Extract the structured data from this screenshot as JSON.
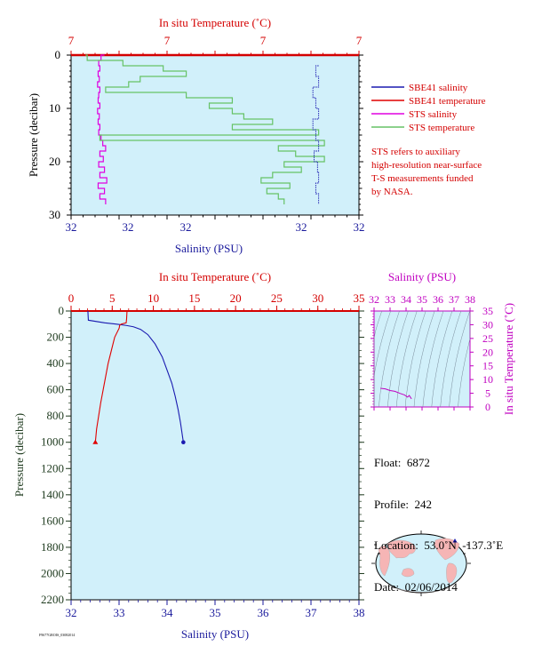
{
  "top_chart": {
    "x2_title": "In situ Temperature (˚C)",
    "x2_tick_labels": [
      "7",
      "7",
      "7",
      "7"
    ],
    "x1_title": "Salinity (PSU)",
    "x1_tick_labels": [
      "32",
      "32",
      "32",
      "32",
      "32"
    ],
    "y_title": "Pressure (decibar)",
    "y_tick_labels": [
      "0",
      "10",
      "20",
      "30"
    ],
    "legend": [
      {
        "label": "SBE41 salinity",
        "color": "#1a1ab0"
      },
      {
        "label": "SBE41 temperature",
        "color": "#e00000"
      },
      {
        "label": "STS salinity",
        "color": "#e000e0"
      },
      {
        "label": "STS temperature",
        "color": "#66c266"
      }
    ],
    "note_lines": [
      "STS refers to auxiliary",
      "high-resolution near-surface",
      "T-S measurements funded",
      "by NASA."
    ]
  },
  "main_chart": {
    "x2_title": "In situ Temperature (˚C)",
    "x1_title": "Salinity (PSU)",
    "y_title": "Pressure (decibar)"
  },
  "ts_chart": {
    "x_title": "Salinity (PSU)",
    "y_title": "In situ Temperature (˚C)"
  },
  "info": {
    "float": "Float:  6872",
    "profile": "Profile:  242",
    "location": "Location:  53.0˚N  -137.3˚E",
    "date": "Date:  02/06/2014"
  },
  "footer_text": "F9677GROIS_03082014",
  "colors": {
    "plot_bg": "#d1f0fa",
    "salinity": "#1a1ab0",
    "temperature": "#e00000",
    "sts_salinity": "#e000e0",
    "sts_temperature": "#66c266",
    "axis_red": "#d40000",
    "axis_blue": "#1a1a9c",
    "axis_magenta": "#c000c0"
  },
  "chart_data": [
    {
      "type": "line",
      "title": "",
      "xlabel": "Salinity (PSU)",
      "x2label": "In situ Temperature (˚C)",
      "ylabel": "Pressure (decibar)",
      "ylim": [
        30,
        0
      ],
      "series": [
        {
          "name": "STS salinity",
          "pressure": [
            0,
            1,
            2,
            3,
            4,
            5,
            6,
            7,
            8,
            9,
            10,
            11,
            12,
            13,
            14,
            15,
            16,
            17,
            18,
            19,
            20,
            21,
            22,
            23,
            24,
            25,
            26,
            27,
            28
          ],
          "values_offset": [
            0.58,
            0.52,
            0.48,
            0.5,
            0.47,
            0.49,
            0.46,
            0.5,
            0.48,
            0.47,
            0.5,
            0.46,
            0.49,
            0.47,
            0.5,
            0.48,
            0.52,
            0.55,
            0.6,
            0.5,
            0.56,
            0.48,
            0.58,
            0.5,
            0.62,
            0.47,
            0.58,
            0.5,
            0.6
          ]
        },
        {
          "name": "STS temperature",
          "pressure": [
            0,
            1,
            2,
            3,
            4,
            5,
            6,
            7,
            8,
            9,
            10,
            11,
            12,
            13,
            14,
            15,
            16,
            17,
            18,
            19,
            20,
            21,
            22,
            23,
            24,
            25,
            26,
            27,
            28
          ],
          "values_offset": [
            0.25,
            0.28,
            0.9,
            1.6,
            2.0,
            1.2,
            1.0,
            0.6,
            2.0,
            2.8,
            2.4,
            2.8,
            3.0,
            3.5,
            2.8,
            4.3,
            0.5,
            4.4,
            3.6,
            3.9,
            4.4,
            3.7,
            4.0,
            3.5,
            3.3,
            3.8,
            3.4,
            3.6,
            3.7
          ]
        },
        {
          "name": "SBE41 salinity",
          "pressure": [
            2,
            4,
            6,
            8,
            10,
            12,
            14,
            16,
            18,
            20,
            22,
            24,
            26,
            28
          ],
          "values_offset": [
            4.3,
            4.25,
            4.3,
            4.2,
            4.25,
            4.3,
            4.2,
            4.25,
            4.3,
            4.22,
            4.28,
            4.3,
            4.25,
            4.3
          ]
        }
      ]
    },
    {
      "type": "line",
      "title": "",
      "xlabel": "Salinity (PSU)",
      "x2label": "In situ Temperature (˚C)",
      "ylabel": "Pressure (decibar)",
      "xlim": [
        32,
        38
      ],
      "x2lim": [
        0,
        35
      ],
      "ylim": [
        2200,
        0
      ],
      "x_ticks": [
        32,
        33,
        34,
        35,
        36,
        37,
        38
      ],
      "x2_ticks": [
        0,
        5,
        10,
        15,
        20,
        25,
        30,
        35
      ],
      "y_ticks": [
        0,
        200,
        400,
        600,
        800,
        1000,
        1200,
        1400,
        1600,
        1800,
        2000,
        2200
      ],
      "series": [
        {
          "name": "SBE41 salinity",
          "axis": "salinity",
          "pressure": [
            0,
            70,
            90,
            100,
            110,
            120,
            140,
            180,
            250,
            350,
            450,
            550,
            650,
            750,
            850,
            950,
            1000
          ],
          "values": [
            32.35,
            32.36,
            32.7,
            32.95,
            33.15,
            33.3,
            33.45,
            33.6,
            33.75,
            33.9,
            34.0,
            34.1,
            34.17,
            34.23,
            34.28,
            34.32,
            34.34
          ]
        },
        {
          "name": "SBE41 temperature",
          "axis": "temperature",
          "pressure": [
            0,
            60,
            90,
            100,
            110,
            130,
            200,
            300,
            400,
            500,
            600,
            700,
            800,
            900,
            1000
          ],
          "values": [
            6.8,
            6.75,
            6.7,
            6.1,
            5.9,
            5.85,
            5.3,
            4.9,
            4.5,
            4.2,
            3.9,
            3.6,
            3.35,
            3.1,
            2.95
          ]
        }
      ]
    },
    {
      "type": "scatter",
      "title": "",
      "xlabel": "Salinity (PSU)",
      "ylabel": "In situ Temperature (˚C)",
      "xlim": [
        32,
        38
      ],
      "ylim": [
        0,
        35
      ],
      "x_ticks": [
        32,
        33,
        34,
        35,
        36,
        37,
        38
      ],
      "y_ticks": [
        0,
        5,
        10,
        15,
        20,
        25,
        30,
        35
      ],
      "series": [
        {
          "name": "SBE41",
          "x": [
            32.4,
            32.7,
            33.0,
            33.3,
            33.6,
            33.9,
            34.1,
            34.2,
            34.34
          ],
          "y": [
            6.8,
            6.6,
            6.0,
            5.7,
            5.0,
            4.4,
            3.6,
            4.2,
            2.95
          ]
        }
      ]
    }
  ]
}
